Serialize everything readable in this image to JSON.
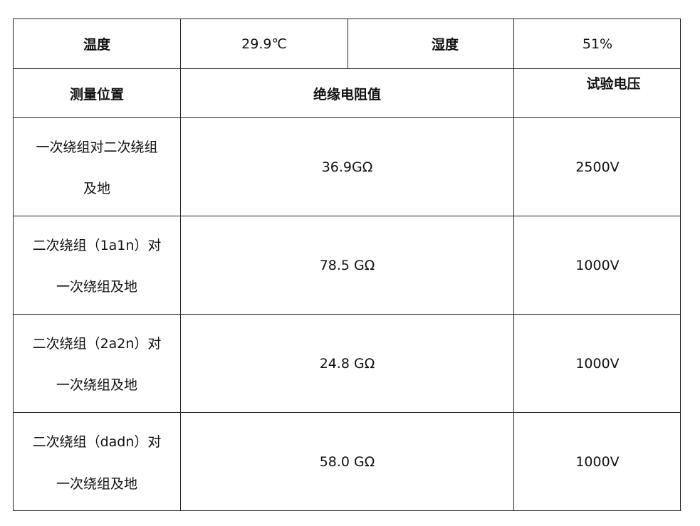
{
  "header": {
    "temp_label": "温度",
    "temp_value": "29.9℃",
    "hum_label": "湿度",
    "hum_value": "51%",
    "col_position": "测量位置",
    "col_resistance": "绝缘电阻值",
    "col_voltage": "试验电压"
  },
  "rows": [
    {
      "pos1": "一次绕组对二次绕组",
      "pos2": "及地",
      "resistance": "36.9GΩ",
      "voltage": "2500V"
    },
    {
      "pos1": "二次绕组（1a1n）对",
      "pos2": "一次绕组及地",
      "resistance": "78.5 GΩ",
      "voltage": "1000V"
    },
    {
      "pos1": "二次绕组（2a2n）对",
      "pos2": "一次绕组及地",
      "resistance": "24.8 GΩ",
      "voltage": "1000V"
    },
    {
      "pos1": "二次绕组（dadn）对",
      "pos2": "一次绕组及地",
      "resistance": "58.0 GΩ",
      "voltage": "1000V"
    }
  ]
}
